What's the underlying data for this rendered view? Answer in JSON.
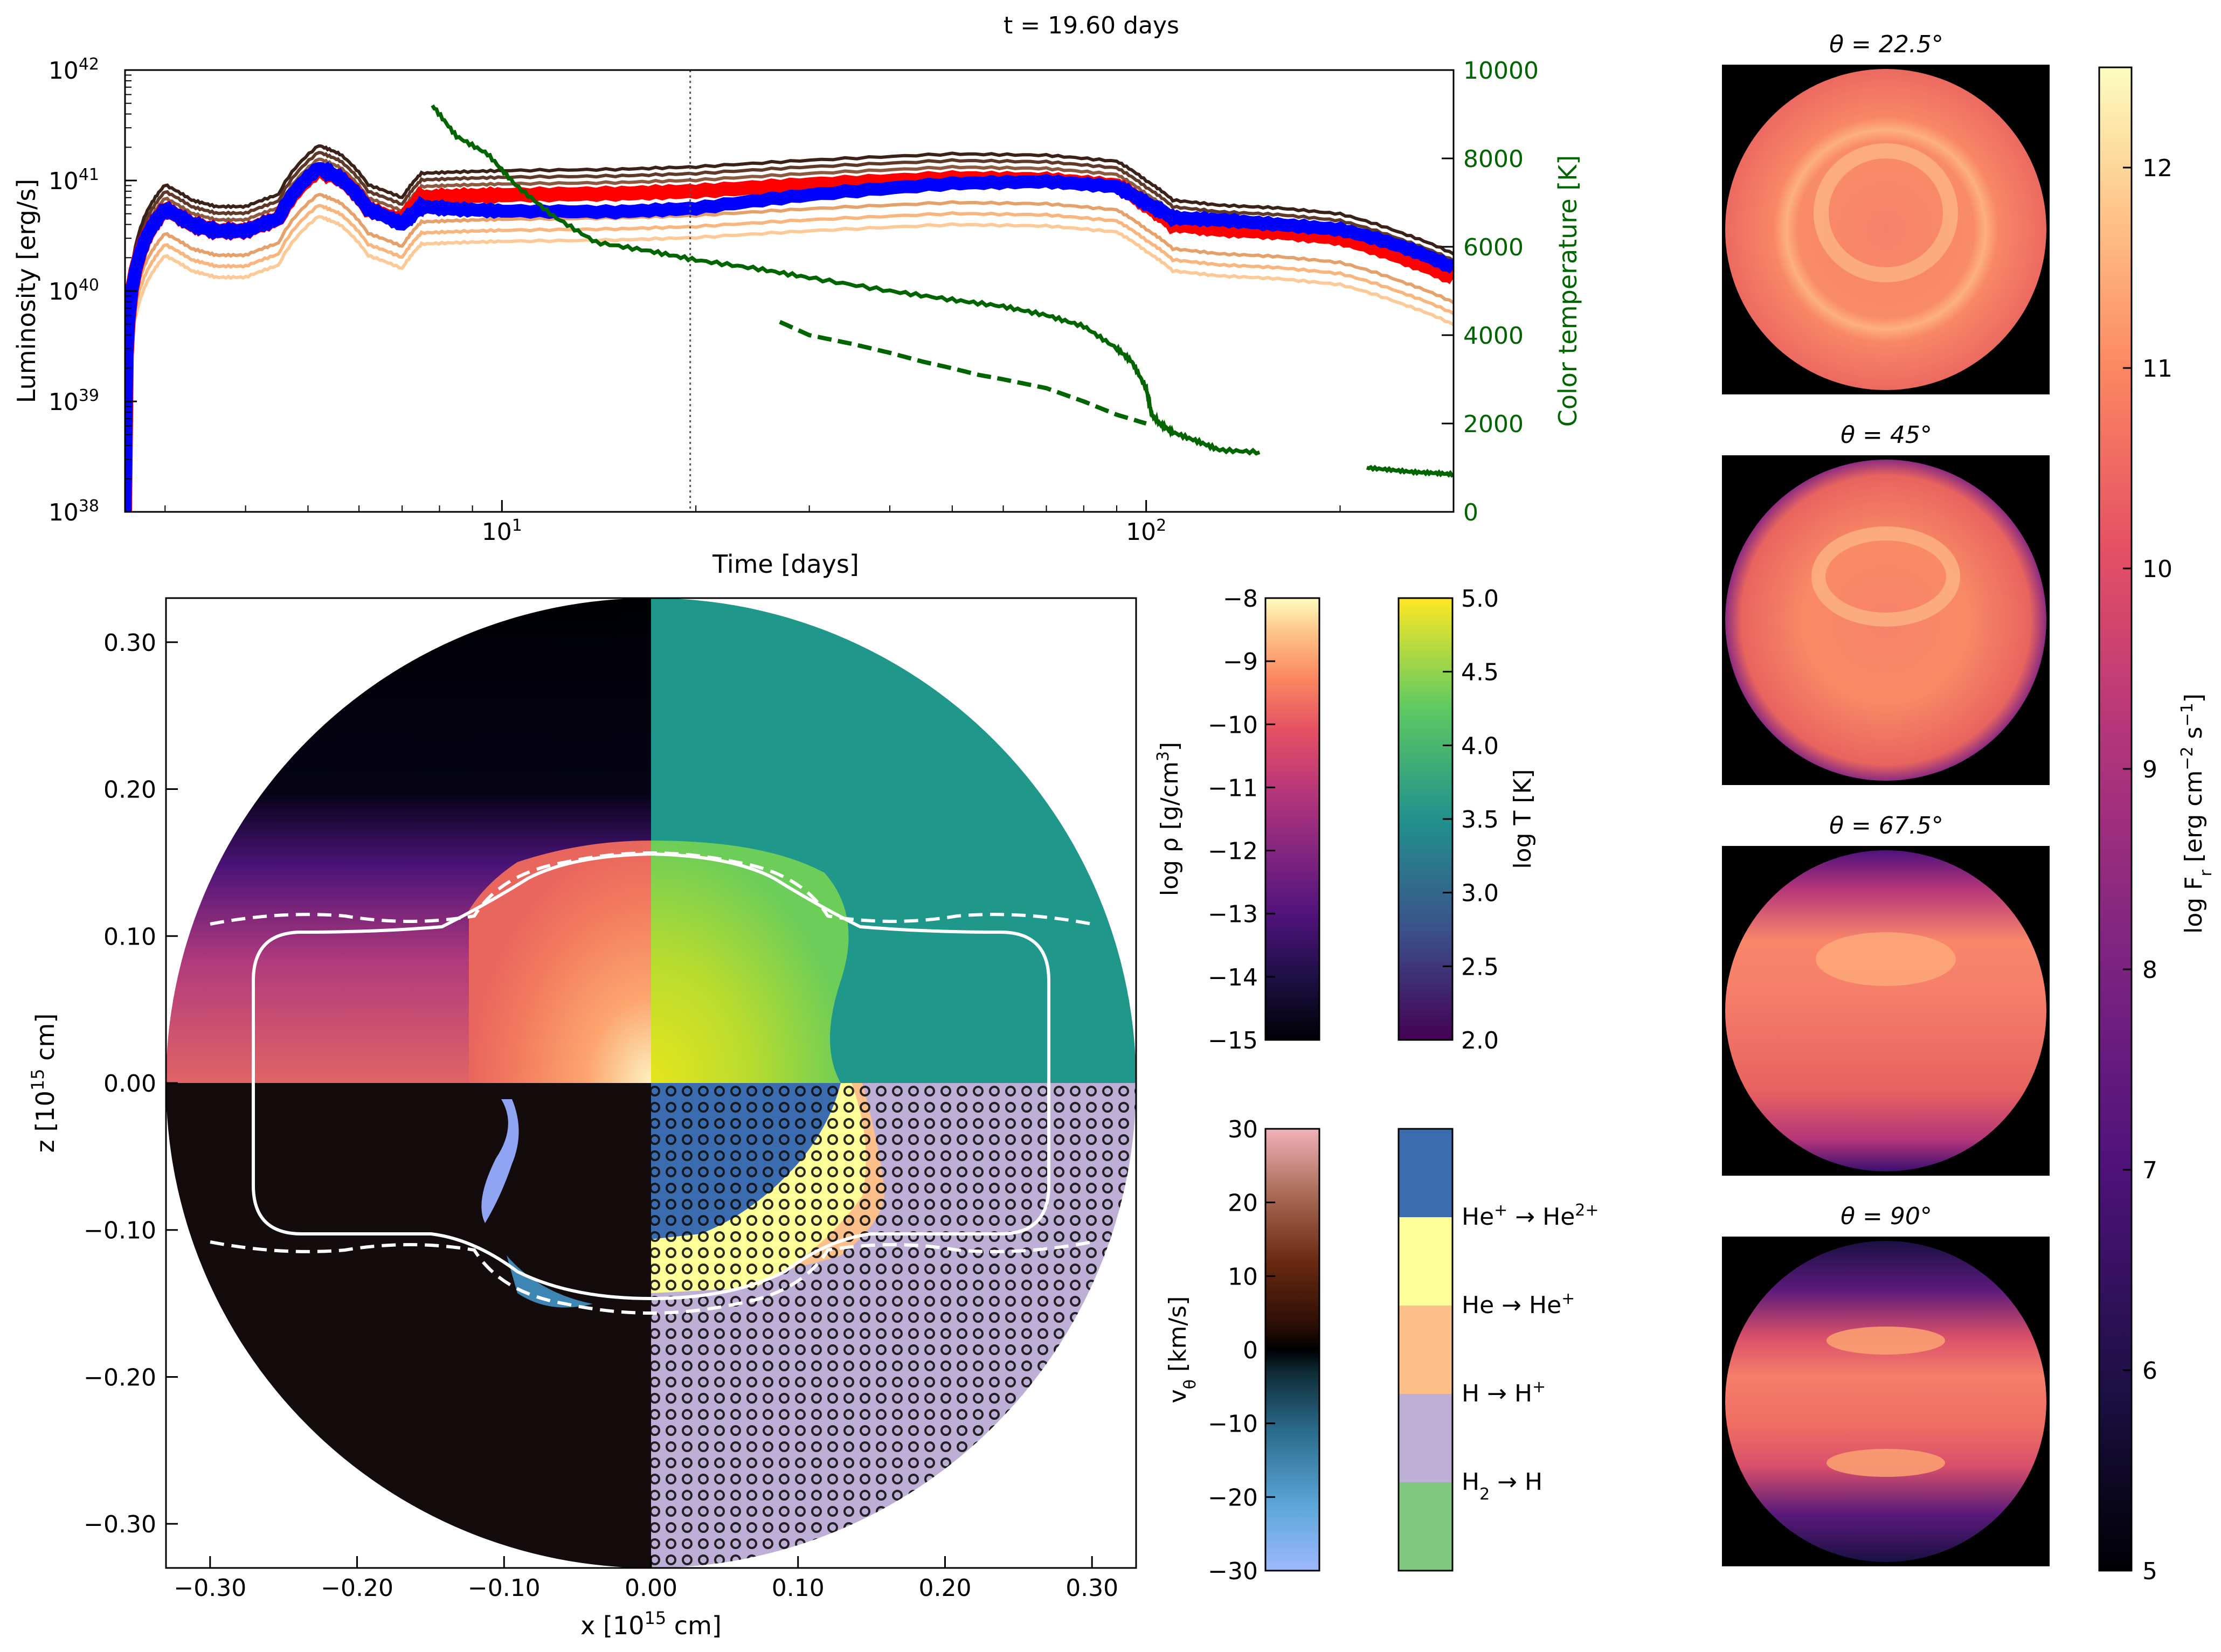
{
  "figure": {
    "time_title": "t = 19.60 days"
  },
  "chart_data": [
    {
      "type": "line",
      "panel": "lightcurve",
      "xlabel": "Time [days]",
      "ylabel": "Luminosity [erg/s]",
      "y2label": "Color temperature [K]",
      "xscale": "log",
      "yscale": "log",
      "xlim": [
        2.6,
        300
      ],
      "ylim": [
        1e+38,
        1e+42
      ],
      "y2lim": [
        0,
        10000
      ],
      "x_ticks": [
        "10",
        "10"
      ],
      "x_tick_sup": [
        "1",
        "2"
      ],
      "x_tick_values": [
        10,
        100
      ],
      "y_ticks": [
        "10",
        "10",
        "10",
        "10",
        "10"
      ],
      "y_tick_sup": [
        "38",
        "39",
        "40",
        "41",
        "42"
      ],
      "y_tick_values": [
        1e+38,
        1e+39,
        1e+40,
        1e+41,
        1e+42
      ],
      "y2_ticks": [
        "0",
        "2000",
        "4000",
        "6000",
        "8000",
        "10000"
      ],
      "y2_tick_values": [
        0,
        2000,
        4000,
        6000,
        8000,
        10000
      ],
      "marker_x": 19.6,
      "grid": false,
      "colors": {
        "blue": "#0000ff",
        "red": "#ff0000",
        "green": "#006400",
        "browns": [
          "#fdc996",
          "#f9b57c",
          "#e6a06a",
          "#b97b55",
          "#8c5a40",
          "#5f3a2a",
          "#3a2218"
        ]
      },
      "luminosity_base": {
        "x": [
          2.6,
          2.8,
          3.0,
          3.3,
          3.6,
          4.0,
          4.5,
          5.2,
          5.6,
          6.2,
          7.0,
          7.5,
          8.5,
          10,
          15,
          20,
          30,
          50,
          70,
          90,
          100,
          110,
          130,
          160,
          200,
          250,
          300
        ],
        "y": [
          1e+38,
          3e+40,
          5.5e+40,
          4e+40,
          3.5e+40,
          3.5e+40,
          4.5e+40,
          1.25e+41,
          1.05e+41,
          5.5e+40,
          4.2e+40,
          7e+40,
          7.2e+40,
          7.4e+40,
          7.6e+40,
          8e+40,
          9.2e+40,
          1.05e+41,
          1.02e+41,
          9e+40,
          6e+40,
          4e+40,
          3.6e+40,
          3.4e+40,
          3e+40,
          2e+40,
          1.3e+40
        ]
      },
      "brown_offsets_dex": [
        -0.42,
        -0.32,
        -0.22,
        0.04,
        0.1,
        0.16,
        0.22
      ],
      "red_offset_dex": 0,
      "blue_series": {
        "x": [
          2.6,
          2.8,
          3.0,
          3.3,
          3.6,
          4.0,
          4.5,
          5.2,
          5.6,
          6.2,
          7.0,
          7.5,
          8.5,
          10,
          15,
          20,
          30,
          50,
          70,
          90,
          100,
          110,
          130,
          160,
          200,
          250,
          300
        ],
        "y": [
          1e+38,
          3e+40,
          5.5e+40,
          4e+40,
          3.5e+40,
          3.5e+40,
          4.5e+40,
          1.3e+41,
          1.05e+41,
          5.5e+40,
          4e+40,
          5.8e+40,
          5.5e+40,
          5.3e+40,
          5.2e+40,
          5.6e+40,
          7.4e+40,
          9.4e+40,
          9.8e+40,
          8.8e+40,
          6.2e+40,
          4.6e+40,
          4.4e+40,
          4e+40,
          3.6e+40,
          2.5e+40,
          1.6e+40
        ]
      },
      "tcolor_solid": {
        "x": [
          7.8,
          8.5,
          9.5,
          10.5,
          12,
          14,
          17,
          20,
          25,
          30,
          40,
          50,
          60,
          70,
          80,
          90,
          95,
          100,
          102,
          105,
          110,
          120,
          130,
          150
        ],
        "y": [
          9200,
          8500,
          8100,
          7400,
          6700,
          6100,
          5900,
          5700,
          5500,
          5300,
          5000,
          4800,
          4650,
          4450,
          4200,
          3700,
          3400,
          2800,
          2200,
          2000,
          1800,
          1600,
          1400,
          1350
        ]
      },
      "tcolor_solid_tail": {
        "x": [
          220,
          240,
          260,
          280,
          300
        ],
        "y": [
          1000,
          950,
          900,
          880,
          850
        ]
      },
      "tcolor_dashed": {
        "x": [
          27,
          30,
          35,
          40,
          45,
          50,
          55,
          60,
          70,
          80,
          90,
          100
        ],
        "y": [
          4300,
          4000,
          3800,
          3600,
          3400,
          3250,
          3100,
          3000,
          2800,
          2500,
          2200,
          2000
        ]
      }
    },
    {
      "type": "heatmap",
      "panel": "meridional-slice",
      "xlabel": "x [10",
      "xlabel_sup": "15",
      "xlabel_end": " cm]",
      "ylabel": "z [10",
      "ylabel_sup": "15",
      "ylabel_end": " cm]",
      "xlim": [
        -0.33,
        0.33
      ],
      "ylim": [
        -0.33,
        0.33
      ],
      "x_ticks": [
        "−0.30",
        "−0.20",
        "−0.10",
        "0.00",
        "0.10",
        "0.20",
        "0.30"
      ],
      "x_tick_values": [
        -0.3,
        -0.2,
        -0.1,
        0,
        0.1,
        0.2,
        0.3
      ],
      "y_ticks": [
        "−0.30",
        "−0.20",
        "−0.10",
        "0.00",
        "0.10",
        "0.20",
        "0.30"
      ],
      "y_tick_values": [
        -0.3,
        -0.2,
        -0.1,
        0,
        0.1,
        0.2,
        0.3
      ],
      "quadrants": [
        "log ρ",
        "log T",
        "v_θ",
        "ionization"
      ]
    },
    {
      "type": "heatmap",
      "panel": "colorbars",
      "rho": {
        "label": "log ρ [g/cm",
        "label_sup": "3",
        "label_end": "]",
        "ticks": [
          "−8",
          "−9",
          "−10",
          "−11",
          "−12",
          "−13",
          "−14",
          "−15"
        ],
        "range": [
          -15,
          -8
        ],
        "colors": [
          "#000004",
          "#1c1044",
          "#4f127b",
          "#812581",
          "#b5367a",
          "#e55064",
          "#fb8861",
          "#fec287",
          "#fcfdbf"
        ]
      },
      "T": {
        "label": "log T [K]",
        "ticks": [
          "5.0",
          "4.5",
          "4.0",
          "3.5",
          "3.0",
          "2.5",
          "2.0"
        ],
        "range": [
          2.0,
          5.0
        ],
        "colors": [
          "#440154",
          "#3b528b",
          "#21918c",
          "#5ec962",
          "#fde725"
        ]
      },
      "v": {
        "label": "v",
        "label_sub": "θ",
        "label_end": " [km/s]",
        "ticks": [
          "30",
          "20",
          "10",
          "0",
          "−10",
          "−20",
          "−30"
        ],
        "range": [
          -30,
          30
        ],
        "colors": [
          "#9eb7ff",
          "#5aa6d8",
          "#2a6a8a",
          "#0f2b36",
          "#000000",
          "#2e0f05",
          "#6a2a12",
          "#a86a55",
          "#d9a1a1",
          "#f2b0b8"
        ]
      },
      "ion": {
        "levels": [
          {
            "pre": "He",
            "pre_sup": "+",
            "arrow": " → ",
            "post": "He",
            "post_sup": "2+",
            "color": "#3b6cb0"
          },
          {
            "pre": "He",
            "pre_sup": "",
            "arrow": " → ",
            "post": "He",
            "post_sup": "+",
            "color": "#ffff99"
          },
          {
            "pre": "H",
            "pre_sup": "",
            "arrow": " → ",
            "post": "H",
            "post_sup": "+",
            "color": "#fdc08a"
          },
          {
            "pre": "H",
            "pre_sub": "2",
            "arrow": " → ",
            "post": "H",
            "post_sup": "",
            "color": "#bdafd6"
          },
          {
            "pre": "",
            "pre_sup": "",
            "arrow": "",
            "post": "",
            "post_sup": "",
            "color": "#80c77f"
          }
        ]
      }
    },
    {
      "type": "heatmap",
      "panel": "flux-images",
      "titles": [
        "θ = 22.5°",
        "θ = 45°",
        "θ = 67.5°",
        "θ = 90°"
      ],
      "colorbar_label": "log F",
      "colorbar_label_sub": "r",
      "colorbar_label_end": " [erg cm",
      "colorbar_label_sup1": "−2",
      "colorbar_label_mid": " s",
      "colorbar_label_sup2": "−1",
      "colorbar_label_close": "]",
      "colorbar_ticks": [
        "12",
        "11",
        "10",
        "9",
        "8",
        "7",
        "6",
        "5"
      ],
      "colorbar_range": [
        5,
        12.5
      ]
    }
  ]
}
